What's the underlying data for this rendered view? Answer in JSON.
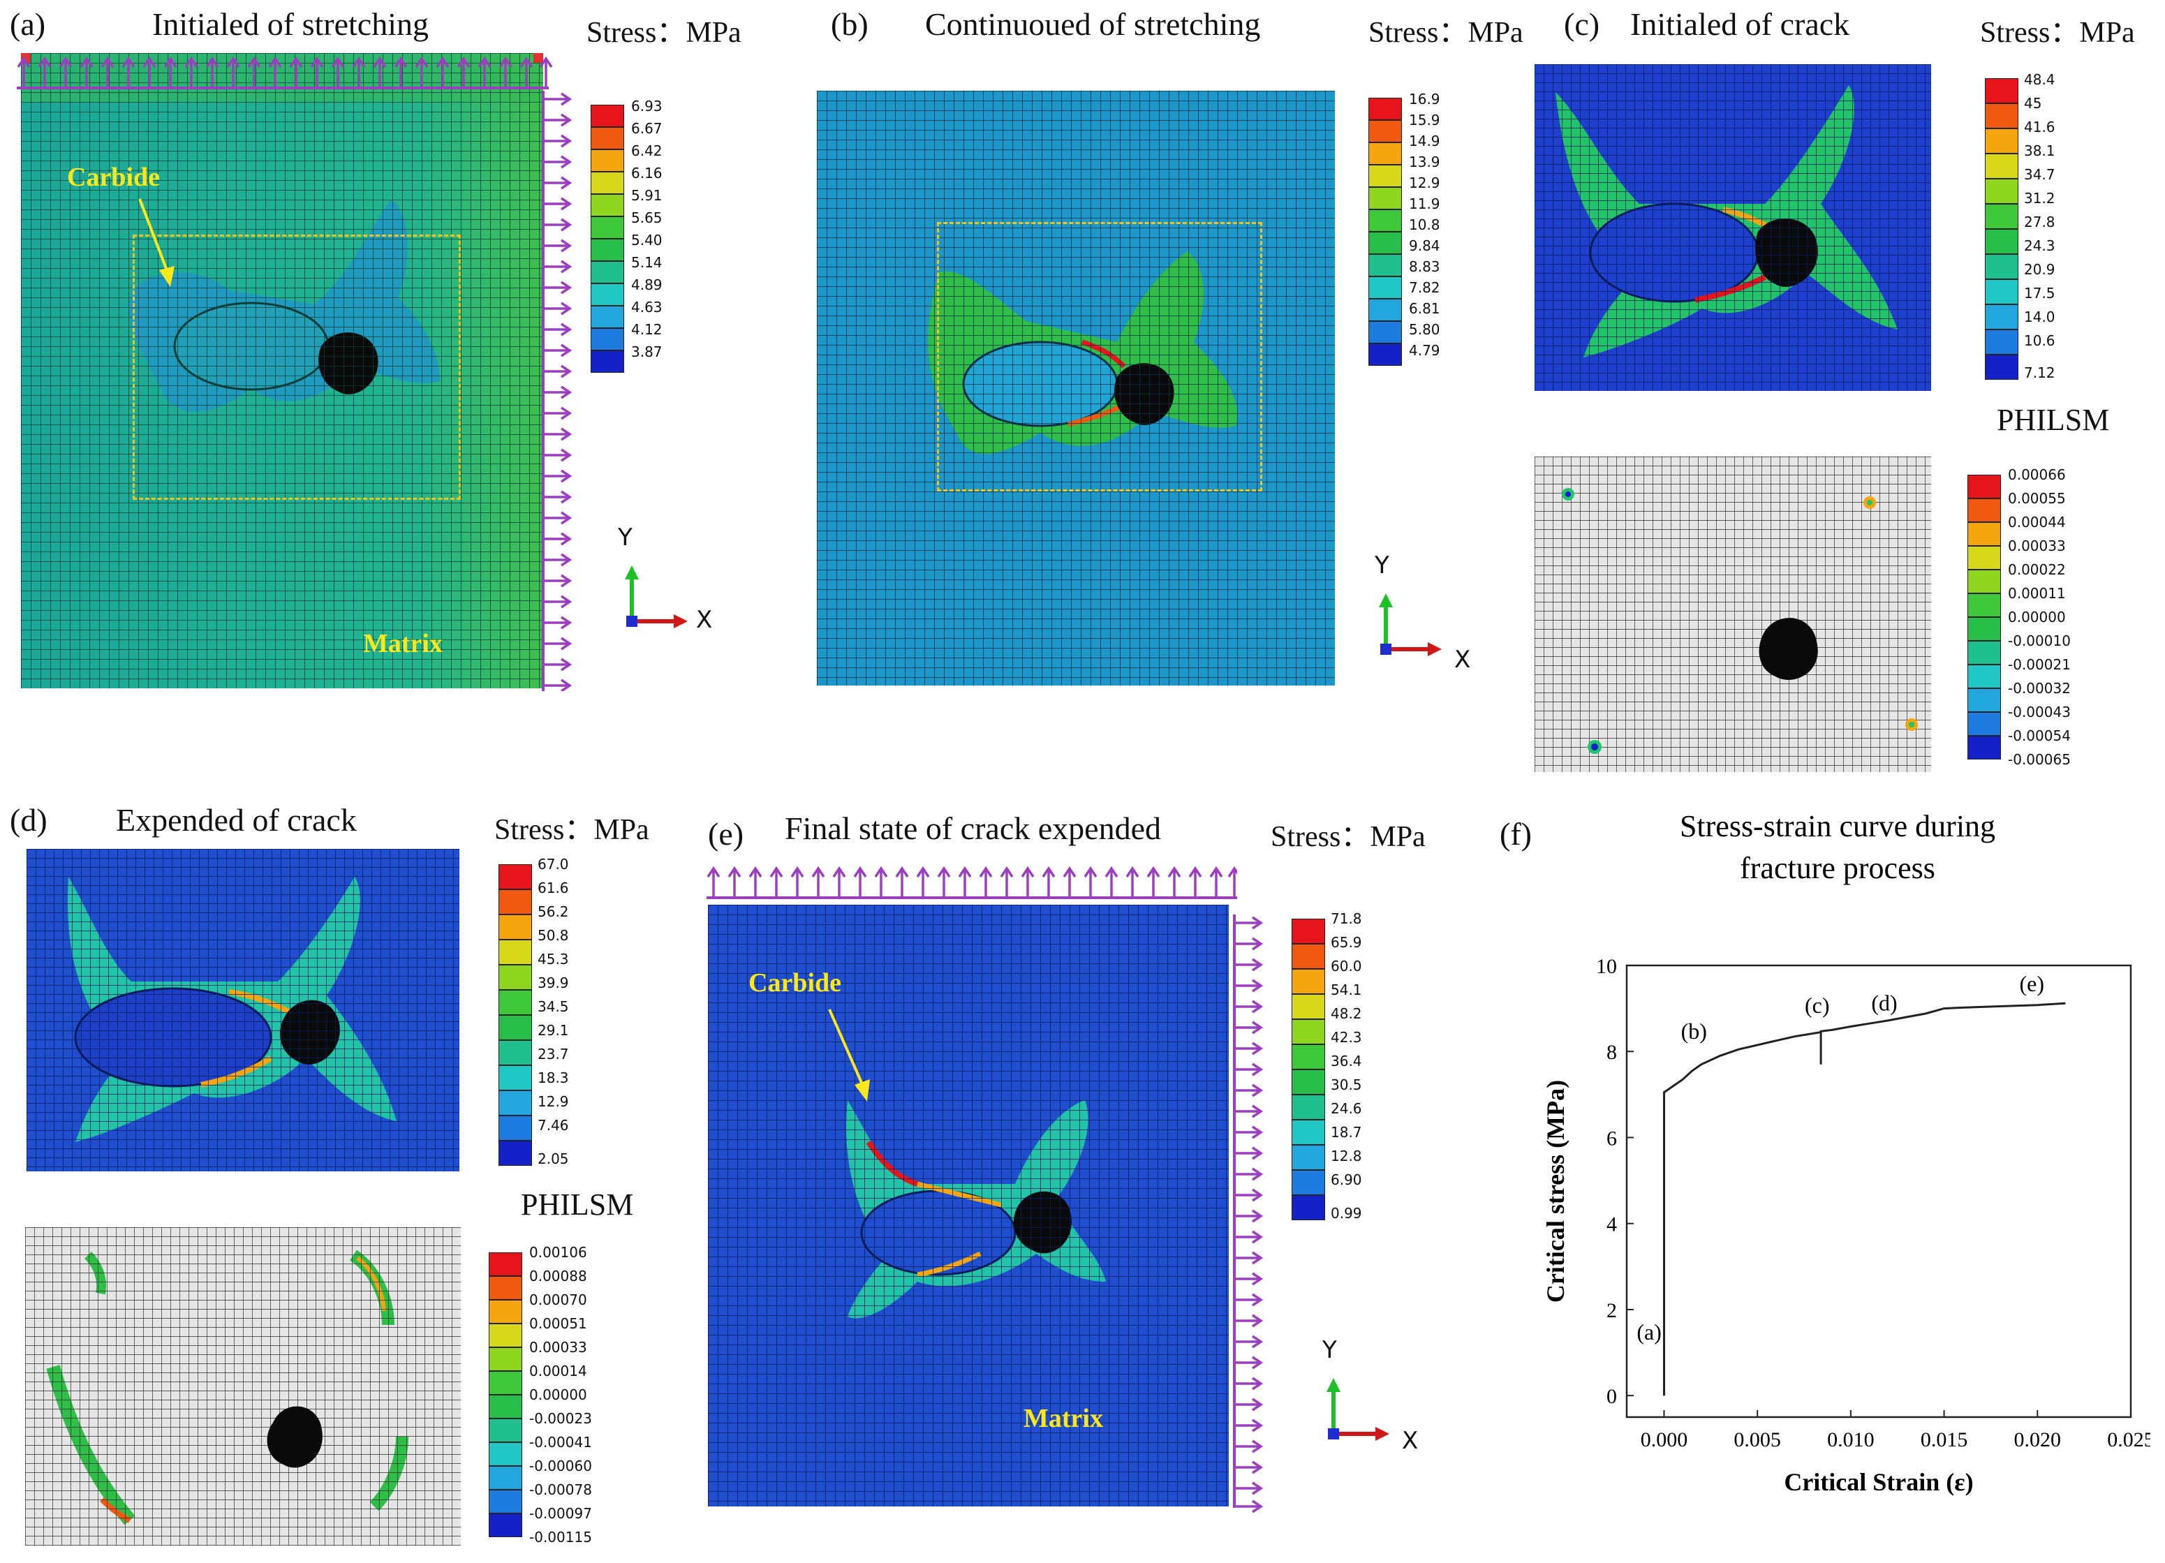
{
  "panels": {
    "a": {
      "tag": "(a)",
      "title": "Initialed of stretching",
      "stress_label": "Stress：MPa",
      "legend": [
        "6.93",
        "6.67",
        "6.42",
        "6.16",
        "5.91",
        "5.65",
        "5.40",
        "5.14",
        "4.89",
        "4.63",
        "4.12",
        "3.87"
      ],
      "carbide": "Carbide",
      "matrix": "Matrix"
    },
    "b": {
      "tag": "(b)",
      "title": "Continuoued of stretching",
      "stress_label": "Stress：MPa",
      "legend": [
        "16.9",
        "15.9",
        "14.9",
        "13.9",
        "12.9",
        "11.9",
        "10.8",
        "9.84",
        "8.83",
        "7.82",
        "6.81",
        "5.80",
        "4.79"
      ]
    },
    "c": {
      "tag": "(c)",
      "title": "Initialed of crack",
      "stress_label": "Stress：MPa",
      "legend": [
        "48.4",
        "45",
        "41.6",
        "38.1",
        "34.7",
        "31.2",
        "27.8",
        "24.3",
        "20.9",
        "17.5",
        "14.0",
        "10.6",
        "7.12"
      ],
      "philsm_label": "PHILSM",
      "philsm_legend": [
        "0.00066",
        "0.00055",
        "0.00044",
        "0.00033",
        "0.00022",
        "0.00011",
        "0.00000",
        "-0.00010",
        "-0.00021",
        "-0.00032",
        "-0.00043",
        "-0.00054",
        "-0.00065"
      ]
    },
    "d": {
      "tag": "(d)",
      "title": "Expended of crack",
      "stress_label": "Stress：MPa",
      "legend": [
        "67.0",
        "61.6",
        "56.2",
        "50.8",
        "45.3",
        "39.9",
        "34.5",
        "29.1",
        "23.7",
        "18.3",
        "12.9",
        "7.46",
        "2.05"
      ],
      "philsm_label": "PHILSM",
      "philsm_legend": [
        "0.00106",
        "0.00088",
        "0.00070",
        "0.00051",
        "0.00033",
        "0.00014",
        "0.00000",
        "-0.00023",
        "-0.00041",
        "-0.00060",
        "-0.00078",
        "-0.00097",
        "-0.00115"
      ]
    },
    "e": {
      "tag": "(e)",
      "title": "Final state of crack expended",
      "stress_label": "Stress：MPa",
      "legend": [
        "71.8",
        "65.9",
        "60.0",
        "54.1",
        "48.2",
        "42.3",
        "36.4",
        "30.5",
        "24.6",
        "18.7",
        "12.8",
        "6.90",
        "0.99"
      ],
      "carbide": "Carbide",
      "matrix": "Matrix"
    },
    "f": {
      "tag": "(f)"
    }
  },
  "axes": {
    "y": "Y",
    "x": "X"
  },
  "colors": {
    "scale": [
      "#e8141c",
      "#f05a10",
      "#f5a60f",
      "#d7d81a",
      "#8fd61e",
      "#3ec83a",
      "#27bf4a",
      "#1fc08e",
      "#21c7c4",
      "#22a6de",
      "#1d7be0",
      "#1847d9",
      "#1420c8"
    ],
    "arrow": "#9b3fbf",
    "dash": "#f2c21d",
    "matrix_a": "#1eb49a",
    "matrix_b": "#1c97c9",
    "matrix_blue": "#1f4fcf"
  },
  "chart_data": {
    "type": "line",
    "title": "Stress-strain curve during fracture process",
    "xlabel": "Critical Strain (ε)",
    "ylabel": "Critical stress (MPa)",
    "xlim": [
      -0.002,
      0.025
    ],
    "ylim": [
      -0.5,
      10
    ],
    "xticks": [
      "0.000",
      "0.005",
      "0.010",
      "0.015",
      "0.020",
      "0.025"
    ],
    "yticks": [
      "0",
      "2",
      "4",
      "6",
      "8",
      "10"
    ],
    "series": [
      {
        "name": "stress-strain",
        "x": [
          0.0,
          0.0,
          0.0,
          0.0005,
          0.001,
          0.0015,
          0.002,
          0.003,
          0.004,
          0.005,
          0.006,
          0.007,
          0.008,
          0.0084,
          0.0084,
          0.0084,
          0.009,
          0.01,
          0.011,
          0.012,
          0.013,
          0.014,
          0.015,
          0.016,
          0.018,
          0.02,
          0.0215
        ],
        "y": [
          0.0,
          4.0,
          7.05,
          7.2,
          7.35,
          7.55,
          7.7,
          7.9,
          8.05,
          8.15,
          8.25,
          8.35,
          8.42,
          8.45,
          7.7,
          8.47,
          8.5,
          8.58,
          8.65,
          8.72,
          8.8,
          8.88,
          9.0,
          9.02,
          9.05,
          9.08,
          9.12
        ]
      }
    ],
    "annotations": [
      {
        "text": "(a)",
        "x": -0.0008,
        "y": 1.3
      },
      {
        "text": "(b)",
        "x": 0.0016,
        "y": 8.3
      },
      {
        "text": "(c)",
        "x": 0.0082,
        "y": 8.9
      },
      {
        "text": "(d)",
        "x": 0.0118,
        "y": 8.95
      },
      {
        "text": "(e)",
        "x": 0.0197,
        "y": 9.4
      }
    ]
  }
}
